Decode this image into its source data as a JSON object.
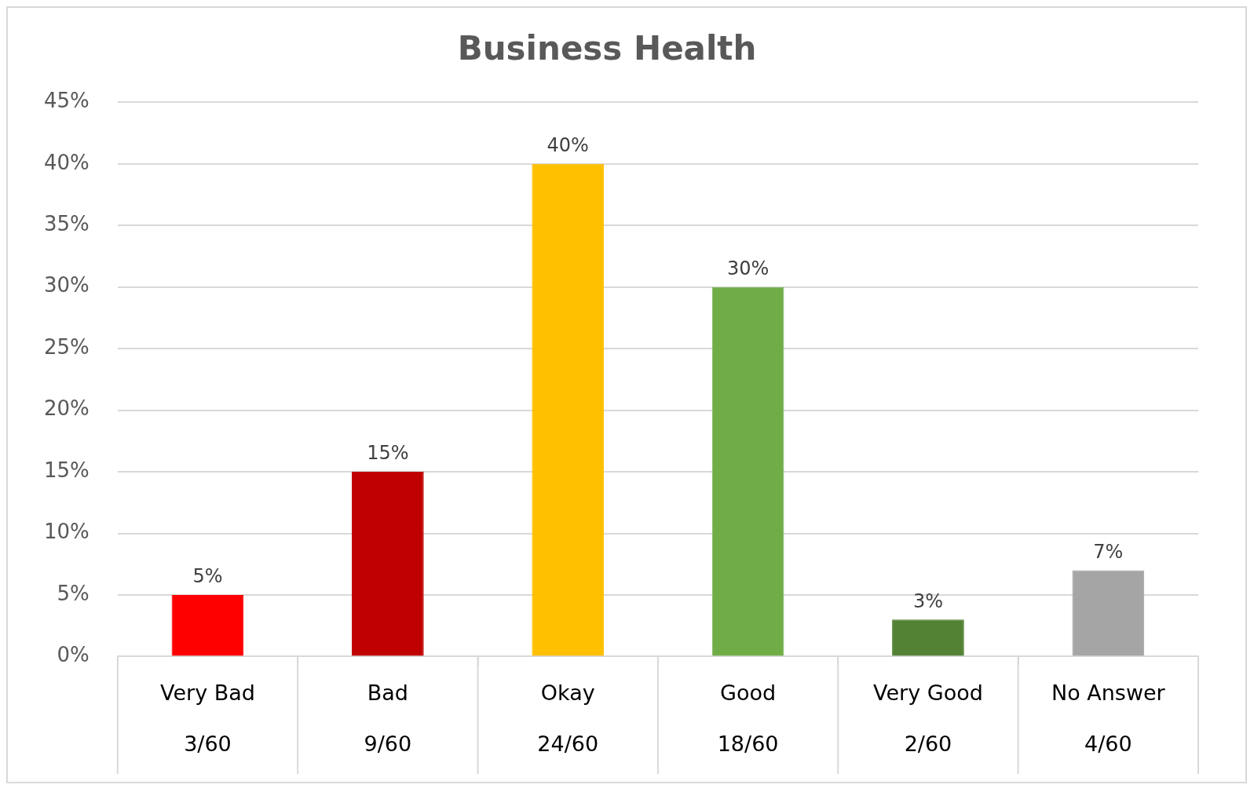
{
  "chart_data": {
    "type": "bar",
    "title": "Business Health",
    "categories": [
      "Very Bad\n3/60",
      "Bad\n9/60",
      "Okay\n24/60",
      "Good\n18/60",
      "Very Good\n2/60",
      "No Answer\n4/60"
    ],
    "values": [
      5,
      15,
      40,
      30,
      3,
      7
    ],
    "colors": [
      "#ff0000",
      "#c00000",
      "#ffc000",
      "#70ad47",
      "#548235",
      "#a5a5a5"
    ],
    "value_labels": [
      "5%",
      "15%",
      "40%",
      "30%",
      "3%",
      "7%"
    ],
    "ylim": [
      0,
      45
    ],
    "yticks": [
      {
        "value": 0,
        "label": "0%"
      },
      {
        "value": 5,
        "label": "5%"
      },
      {
        "value": 10,
        "label": "10%"
      },
      {
        "value": 15,
        "label": "15%"
      },
      {
        "value": 20,
        "label": "20%"
      },
      {
        "value": 25,
        "label": "25%"
      },
      {
        "value": 30,
        "label": "30%"
      },
      {
        "value": 35,
        "label": "35%"
      },
      {
        "value": 40,
        "label": "40%"
      },
      {
        "value": 45,
        "label": "45%"
      }
    ],
    "grid": "y",
    "legend": false
  }
}
